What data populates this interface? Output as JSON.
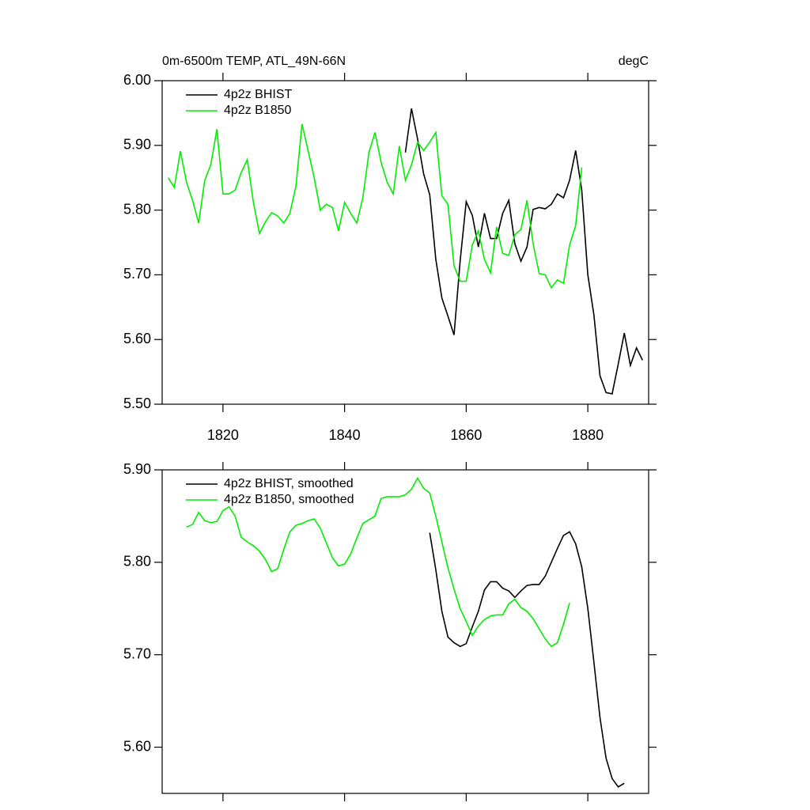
{
  "chart_data": [
    {
      "type": "line",
      "title": "0m-6500m TEMP, ATL_49N-66N",
      "units": "degC",
      "xlim": [
        1810,
        1890
      ],
      "ylim": [
        5.5,
        6.0
      ],
      "xticks": [
        1820,
        1840,
        1860,
        1880
      ],
      "yticks": [
        {
          "value": 5.5,
          "label": "5.50"
        },
        {
          "value": 5.6,
          "label": "5.60"
        },
        {
          "value": 5.7,
          "label": "5.70"
        },
        {
          "value": 5.8,
          "label": "5.80"
        },
        {
          "value": 5.9,
          "label": "5.90"
        },
        {
          "value": 6.0,
          "label": "6.00"
        }
      ],
      "series": [
        {
          "name": "4p2z BHIST",
          "color": "#000000",
          "x": [
            1850,
            1851,
            1852,
            1853,
            1854,
            1855,
            1856,
            1857,
            1858,
            1859,
            1860,
            1861,
            1862,
            1863,
            1864,
            1865,
            1866,
            1867,
            1868,
            1869,
            1870,
            1871,
            1872,
            1873,
            1874,
            1875,
            1876,
            1877,
            1878,
            1879,
            1880,
            1881,
            1882,
            1883,
            1884,
            1885,
            1886,
            1887,
            1888,
            1889
          ],
          "values": [
            5.889,
            5.957,
            5.91,
            5.856,
            5.824,
            5.724,
            5.664,
            5.636,
            5.607,
            5.721,
            5.813,
            5.792,
            5.743,
            5.795,
            5.756,
            5.756,
            5.795,
            5.815,
            5.748,
            5.721,
            5.743,
            5.801,
            5.804,
            5.802,
            5.809,
            5.825,
            5.819,
            5.846,
            5.892,
            5.831,
            5.7,
            5.638,
            5.544,
            5.518,
            5.516,
            5.562,
            5.61,
            5.56,
            5.587,
            5.568
          ]
        },
        {
          "name": "4p2z B1850",
          "color": "#00ee00",
          "x": [
            1811,
            1812,
            1813,
            1814,
            1815,
            1816,
            1817,
            1818,
            1819,
            1820,
            1821,
            1822,
            1823,
            1824,
            1825,
            1826,
            1827,
            1828,
            1829,
            1830,
            1831,
            1832,
            1833,
            1834,
            1835,
            1836,
            1837,
            1838,
            1839,
            1840,
            1841,
            1842,
            1843,
            1844,
            1845,
            1846,
            1847,
            1848,
            1849,
            1850,
            1851,
            1852,
            1853,
            1854,
            1855,
            1856,
            1857,
            1858,
            1859,
            1860,
            1861,
            1862,
            1863,
            1864,
            1865,
            1866,
            1867,
            1868,
            1869,
            1870,
            1871,
            1872,
            1873,
            1874,
            1875,
            1876,
            1877,
            1878,
            1879
          ],
          "values": [
            5.85,
            5.835,
            5.891,
            5.843,
            5.815,
            5.78,
            5.846,
            5.87,
            5.925,
            5.825,
            5.825,
            5.831,
            5.858,
            5.878,
            5.812,
            5.764,
            5.782,
            5.796,
            5.791,
            5.78,
            5.795,
            5.837,
            5.933,
            5.892,
            5.85,
            5.8,
            5.809,
            5.804,
            5.768,
            5.812,
            5.795,
            5.78,
            5.819,
            5.889,
            5.92,
            5.874,
            5.843,
            5.825,
            5.899,
            5.846,
            5.87,
            5.905,
            5.892,
            5.905,
            5.92,
            5.822,
            5.809,
            5.714,
            5.69,
            5.69,
            5.746,
            5.768,
            5.724,
            5.703,
            5.774,
            5.733,
            5.73,
            5.762,
            5.77,
            5.815,
            5.748,
            5.702,
            5.7,
            5.68,
            5.692,
            5.687,
            5.746,
            5.776,
            5.866
          ]
        }
      ]
    },
    {
      "type": "line",
      "xlim": [
        1810,
        1890
      ],
      "ylim": [
        5.55,
        5.9
      ],
      "xticks": [
        1820,
        1840,
        1860,
        1880
      ],
      "yticks": [
        {
          "value": 5.6,
          "label": "5.60"
        },
        {
          "value": 5.7,
          "label": "5.70"
        },
        {
          "value": 5.8,
          "label": "5.80"
        },
        {
          "value": 5.9,
          "label": "5.90"
        }
      ],
      "series": [
        {
          "name": "4p2z BHIST, smoothed",
          "color": "#000000",
          "x": [
            1854,
            1855,
            1856,
            1857,
            1858,
            1859,
            1860,
            1861,
            1862,
            1863,
            1864,
            1865,
            1866,
            1867,
            1868,
            1869,
            1870,
            1871,
            1872,
            1873,
            1874,
            1875,
            1876,
            1877,
            1878,
            1879,
            1880,
            1881,
            1882,
            1883,
            1884,
            1885,
            1886
          ],
          "values": [
            5.832,
            5.792,
            5.747,
            5.719,
            5.713,
            5.709,
            5.712,
            5.73,
            5.747,
            5.77,
            5.779,
            5.779,
            5.772,
            5.769,
            5.762,
            5.769,
            5.775,
            5.776,
            5.776,
            5.785,
            5.8,
            5.815,
            5.829,
            5.833,
            5.82,
            5.795,
            5.75,
            5.692,
            5.632,
            5.588,
            5.566,
            5.557,
            5.561
          ]
        },
        {
          "name": "4p2z B1850, smoothed",
          "color": "#00ee00",
          "x": [
            1814,
            1815,
            1816,
            1817,
            1818,
            1819,
            1820,
            1821,
            1822,
            1823,
            1824,
            1825,
            1826,
            1827,
            1828,
            1829,
            1830,
            1831,
            1832,
            1833,
            1834,
            1835,
            1836,
            1837,
            1838,
            1839,
            1840,
            1841,
            1842,
            1843,
            1844,
            1845,
            1846,
            1847,
            1848,
            1849,
            1850,
            1851,
            1852,
            1853,
            1854,
            1855,
            1856,
            1857,
            1858,
            1859,
            1860,
            1861,
            1862,
            1863,
            1864,
            1865,
            1866,
            1867,
            1868,
            1869,
            1870,
            1871,
            1872,
            1873,
            1874,
            1875,
            1876,
            1877
          ],
          "values": [
            5.838,
            5.841,
            5.854,
            5.845,
            5.843,
            5.844,
            5.856,
            5.86,
            5.85,
            5.827,
            5.822,
            5.818,
            5.812,
            5.803,
            5.79,
            5.793,
            5.814,
            5.833,
            5.84,
            5.842,
            5.845,
            5.847,
            5.837,
            5.821,
            5.805,
            5.796,
            5.798,
            5.809,
            5.826,
            5.842,
            5.846,
            5.85,
            5.869,
            5.871,
            5.871,
            5.871,
            5.873,
            5.879,
            5.891,
            5.88,
            5.875,
            5.85,
            5.822,
            5.794,
            5.771,
            5.75,
            5.736,
            5.721,
            5.731,
            5.738,
            5.742,
            5.743,
            5.743,
            5.755,
            5.76,
            5.751,
            5.747,
            5.739,
            5.728,
            5.717,
            5.709,
            5.713,
            5.733,
            5.756
          ]
        }
      ]
    }
  ]
}
